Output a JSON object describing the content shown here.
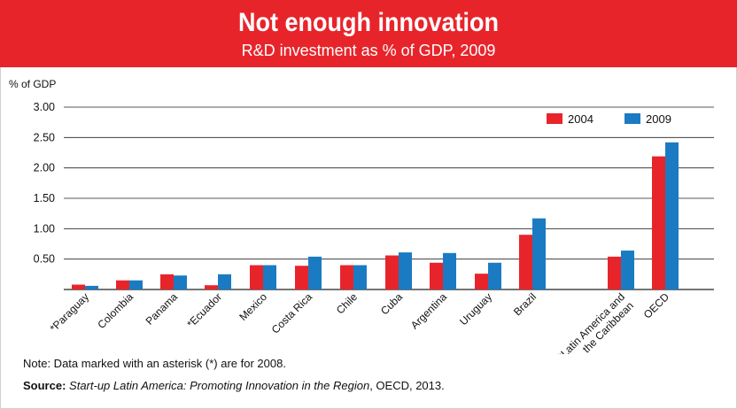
{
  "header": {
    "title": "Not enough innovation",
    "subtitle": "R&D investment as % of GDP, 2009"
  },
  "colors": {
    "header_bg": "#e8242b",
    "series_2004": "#e8242b",
    "series_2009": "#1a7bc3"
  },
  "chart_data": {
    "type": "bar",
    "ylabel": "% of GDP",
    "ylim": [
      0,
      3.0
    ],
    "yticks": [
      "3.00",
      "2.50",
      "2.00",
      "1.50",
      "1.00",
      "0.50"
    ],
    "ytick_values": [
      3.0,
      2.5,
      2.0,
      1.5,
      1.0,
      0.5
    ],
    "grid": true,
    "legend_position": "top-right",
    "categories": [
      "*Paraguay",
      "Colombia",
      "Panama",
      "*Ecuador",
      "Mexico",
      "Costa Rica",
      "Chile",
      "Cuba",
      "Argentina",
      "Uruguay",
      "Brazil",
      "*Latin America and the Caribbean",
      "OECD"
    ],
    "category_lines": [
      [
        "*Paraguay"
      ],
      [
        "Colombia"
      ],
      [
        "Panama"
      ],
      [
        "*Ecuador"
      ],
      [
        "Mexico"
      ],
      [
        "Costa Rica"
      ],
      [
        "Chile"
      ],
      [
        "Cuba"
      ],
      [
        "Argentina"
      ],
      [
        "Uruguay"
      ],
      [
        "Brazil"
      ],
      [
        "*Latin America and",
        "the Caribbean"
      ],
      [
        "OECD"
      ]
    ],
    "series": [
      {
        "name": "2004",
        "values": [
          0.08,
          0.15,
          0.25,
          0.07,
          0.4,
          0.39,
          0.4,
          0.56,
          0.44,
          0.26,
          0.9,
          0.54,
          2.19
        ]
      },
      {
        "name": "2009",
        "values": [
          0.06,
          0.15,
          0.23,
          0.25,
          0.4,
          0.54,
          0.4,
          0.61,
          0.6,
          0.44,
          1.17,
          0.64,
          2.42
        ]
      }
    ]
  },
  "footer": {
    "note": "Note: Data marked with an asterisk (*) are for 2008.",
    "source_label": "Source:",
    "source_title": "Start-up Latin America: Promoting Innovation in the Region",
    "source_rest": ", OECD, 2013."
  }
}
